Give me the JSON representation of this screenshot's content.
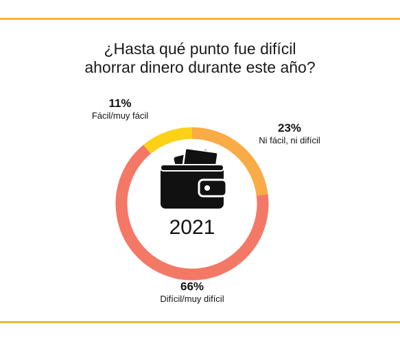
{
  "title_lines": [
    "¿Hasta qué punto fue difícil",
    "ahorrar dinero durante este año?"
  ],
  "year_label": "2021",
  "colors": {
    "rule": "#f5b335",
    "easy": "#fcd116",
    "neutral": "#f9ab45",
    "difficult": "#f47866"
  },
  "icons": {
    "center": "wallet-icon"
  },
  "chart_data": {
    "type": "pie",
    "donut": true,
    "title": "¿Hasta qué punto fue difícil ahorrar dinero durante este año?",
    "categories": [
      "Fácil/muy fácil",
      "Ni fácil, ni difícil",
      "Difícil/muy difícil"
    ],
    "values": [
      11,
      23,
      66
    ],
    "labels": [
      "11%",
      "23%",
      "66%"
    ],
    "unit": "%",
    "legend": "none"
  }
}
